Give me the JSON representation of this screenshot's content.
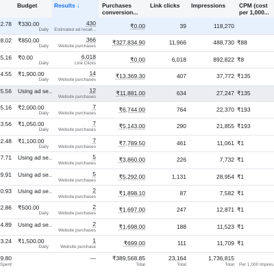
{
  "table": {
    "columns": [
      "Budget",
      "Results ↓",
      "Purchases conversion...",
      "Link clicks",
      "Impressions",
      "CPM (cost per 1,000..."
    ],
    "rows": [
      {
        "spent": "2.78",
        "budget": "₹330.00",
        "budget_note": "Daily",
        "result": "430",
        "result_type": "Estimated ad recall...",
        "purchases": "₹0.00",
        "clicks": "39",
        "impressions": "118,270"
      },
      {
        "spent": "8.02",
        "budget": "₹850.00",
        "budget_note": "Daily",
        "result": "366",
        "result_type": "Website purchases",
        "purchases": "₹327,834.90",
        "clicks": "11,966",
        "impressions": "488,730",
        "cpm": "₹88"
      },
      {
        "spent": "5.16",
        "budget": "₹0.00",
        "budget_note": "Daily",
        "result": "6,018",
        "result_type": "Link Clicks",
        "purchases": "₹0.00",
        "clicks": "6,018",
        "impressions": "892,822",
        "cpm": "₹8"
      },
      {
        "spent": "4.55",
        "budget": "₹1,900.00",
        "budget_note": "Daily",
        "result": "14",
        "result_type": "Website purchases",
        "purchases": "₹13,369.30",
        "clicks": "407",
        "impressions": "37,772",
        "cpm": "₹135"
      },
      {
        "spent": "5.56",
        "budget": "Using ad se...",
        "result": "12",
        "result_type": "Website purchases",
        "purchases": "₹11,881.00",
        "clicks": "634",
        "impressions": "27,247",
        "cpm": "₹135"
      },
      {
        "spent": "5.16",
        "budget": "₹2,000.00",
        "budget_note": "Daily",
        "result": "7",
        "result_type": "Website purchases",
        "purchases": "₹6,744.00",
        "clicks": "764",
        "impressions": "22,370",
        "cpm": "₹193"
      },
      {
        "spent": "3.56",
        "budget": "₹1,050.00",
        "budget_note": "Daily",
        "result": "7",
        "result_type": "Website purchases",
        "purchases": "₹5,143.00",
        "clicks": "290",
        "impressions": "21,855",
        "cpm": "₹193"
      },
      {
        "spent": "2.48",
        "budget": "₹1,100.00",
        "budget_note": "Daily",
        "result": "7",
        "result_type": "Website purchases",
        "purchases": "₹7,789.50",
        "clicks": "461",
        "impressions": "11,061",
        "cpm": "₹1"
      },
      {
        "spent": "7.71",
        "budget": "Using ad se...",
        "result": "5",
        "result_type": "Website purchases",
        "purchases": "₹3,860.00",
        "clicks": "226",
        "impressions": "7,732",
        "cpm": "₹1"
      },
      {
        "spent": "9.91",
        "budget": "Using ad se...",
        "result": "5",
        "result_type": "Website purchases",
        "purchases": "₹5,292.00",
        "clicks": "1,131",
        "impressions": "28,954",
        "cpm": "₹1"
      },
      {
        "spent": "0.93",
        "budget": "Using ad se...",
        "result": "2",
        "result_type": "Website purchases",
        "purchases": "₹1,898.10",
        "clicks": "87",
        "impressions": "7,582",
        "cpm": "₹1"
      },
      {
        "spent": "2.86",
        "budget": "₹500.00",
        "budget_note": "Daily",
        "result": "2",
        "result_type": "Website purchases",
        "purchases": "₹1,697.00",
        "clicks": "247",
        "impressions": "12,871",
        "cpm": "₹1"
      },
      {
        "spent": "4.89",
        "budget": "Using ad se...",
        "result": "2",
        "result_type": "Website purchases",
        "purchases": "₹1,698.00",
        "clicks": "188",
        "impressions": "11,523",
        "cpm": "₹1"
      },
      {
        "spent": "3.24",
        "budget": "₹1,500.00",
        "budget_note": "Daily",
        "result": "1",
        "result_type": "Website purchase",
        "purchases": "₹699.00",
        "clicks": "111",
        "impressions": "11,709",
        "cpm": "₹1"
      }
    ],
    "totals": {
      "spent": "9.80",
      "spent_note": "Spent",
      "result": "—",
      "purchases": "₹389,568.85",
      "purchases_note": "Total",
      "clicks": "23,164",
      "clicks_note": "Total",
      "impressions": "1,736,815",
      "impressions_note": "Total",
      "cpm_note": "Per 1,000 Impres..."
    }
  }
}
